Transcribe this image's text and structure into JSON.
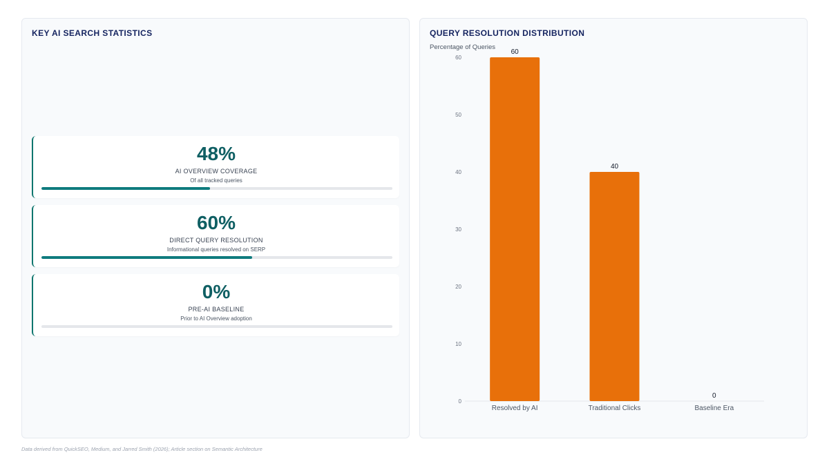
{
  "left_panel": {
    "title": "KEY AI SEARCH STATISTICS",
    "cards": [
      {
        "value": "48%",
        "label": "AI OVERVIEW COVERAGE",
        "sub": "Of all tracked queries",
        "progress": 48
      },
      {
        "value": "60%",
        "label": "DIRECT QUERY RESOLUTION",
        "sub": "Informational queries resolved on SERP",
        "progress": 60
      },
      {
        "value": "0%",
        "label": "PRE-AI BASELINE",
        "sub": "Prior to AI Overview adoption",
        "progress": 0
      }
    ]
  },
  "right_panel": {
    "title": "QUERY RESOLUTION DISTRIBUTION"
  },
  "chart_data": {
    "type": "bar",
    "title": "QUERY RESOLUTION DISTRIBUTION",
    "ylabel": "Percentage of Queries",
    "categories": [
      "Resolved by AI",
      "Traditional Clicks",
      "Baseline Era"
    ],
    "values": [
      60,
      40,
      0
    ],
    "ylim": [
      0,
      60
    ],
    "yticks": [
      0,
      10,
      20,
      30,
      40,
      50,
      60
    ],
    "bar_color": "#e8700a",
    "grid": false,
    "legend": "none"
  },
  "footnote": "Data derived from QuickSEO, Medium, and Jarred Smith (2026); Article section on Semantic Architecture",
  "colors": {
    "accent": "#0f766e",
    "title": "#14235f",
    "bar": "#e8700a"
  }
}
